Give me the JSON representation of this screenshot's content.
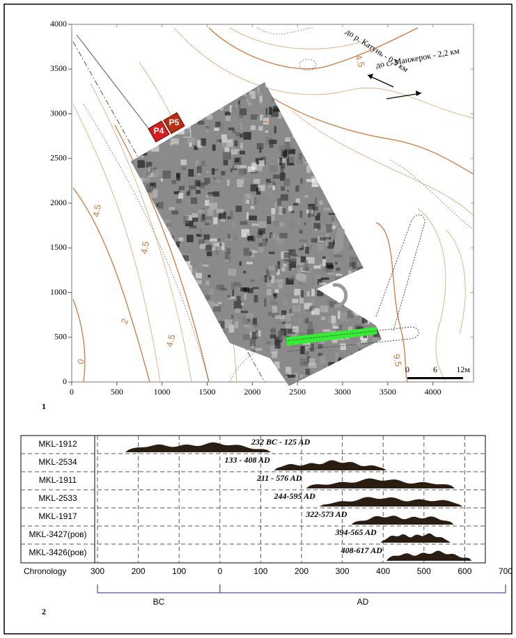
{
  "panel1": {
    "label": "1",
    "xticks": [
      0,
      500,
      1000,
      1500,
      2000,
      2500,
      3000,
      3500,
      4000
    ],
    "yticks": [
      0,
      500,
      1000,
      1500,
      2000,
      2500,
      3000,
      3500,
      4000
    ],
    "xlim": [
      0,
      4450
    ],
    "ylim": [
      0,
      4000
    ],
    "excavations": [
      "P4",
      "P5"
    ],
    "contour_labels": [
      "4.5",
      "2",
      "0",
      "4.5",
      "4.5",
      "7",
      "4.5",
      "9.5"
    ],
    "direction_text": [
      "до р. Катунь - 0,5 км",
      "до с. Манжерок - 2,2 км"
    ],
    "scale_labels": [
      "0",
      "6",
      "12м"
    ]
  },
  "panel2": {
    "label": "2",
    "axis_title": "Chronology",
    "xlim": [
      -300,
      700
    ],
    "xticks": [
      {
        "value": -300,
        "label": "300"
      },
      {
        "value": -200,
        "label": "200"
      },
      {
        "value": -100,
        "label": "100"
      },
      0,
      100,
      200,
      300,
      400,
      500,
      600,
      700
    ],
    "rows": [
      {
        "name": "MKL-1912",
        "range_label": "232 BC - 125 AD",
        "start": -232,
        "end": 125
      },
      {
        "name": "MKL-2534",
        "range_label": "133 - 408 AD",
        "start": 133,
        "end": 408
      },
      {
        "name": "MKL-1911",
        "range_label": "211 - 576 AD",
        "start": 211,
        "end": 576
      },
      {
        "name": "MKL-2533",
        "range_label": "244-595 AD",
        "start": 244,
        "end": 595
      },
      {
        "name": "MKL-1917",
        "range_label": "322-573 AD",
        "start": 322,
        "end": 573
      },
      {
        "name": "MKL-3427(ров)",
        "range_label": "394-565 AD",
        "start": 394,
        "end": 565
      },
      {
        "name": "MKL-3426(ров)",
        "range_label": "408-617 AD",
        "start": 408,
        "end": 617
      }
    ],
    "eras": [
      "BC",
      "AD"
    ]
  }
}
